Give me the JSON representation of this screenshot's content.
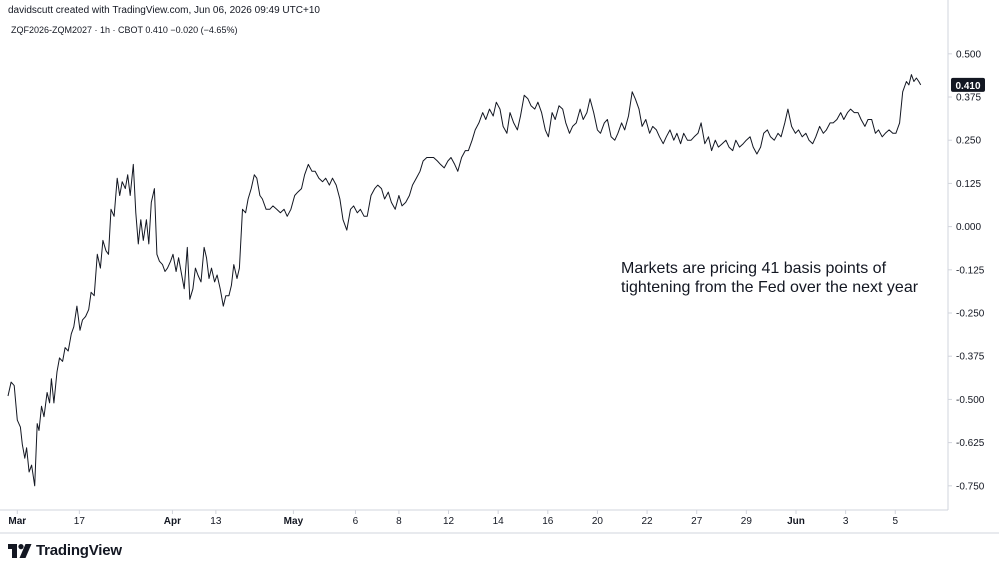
{
  "header": {
    "credit": "davidscutt created with TradingView.com, Jun 06, 2026 09:49 UTC+10",
    "symbol_line": "ZQF2026-ZQM2027 · 1h · CBOT  0.410  −0.020 (−4.65%)"
  },
  "footer": {
    "brand": "TradingView"
  },
  "chart_data": {
    "type": "line",
    "annotation": "Markets are pricing 41 basis points of\ntightening from the Fed over the next year",
    "last_value_label": "0.410",
    "ylim": [
      -0.82,
      0.54
    ],
    "yticks": [
      {
        "value": 0.5,
        "label": "0.500"
      },
      {
        "value": 0.375,
        "label": "0.375"
      },
      {
        "value": 0.25,
        "label": "0.250"
      },
      {
        "value": 0.125,
        "label": "0.125"
      },
      {
        "value": 0.0,
        "label": "0.000"
      },
      {
        "value": -0.125,
        "label": "-0.125"
      },
      {
        "value": -0.25,
        "label": "-0.250"
      },
      {
        "value": -0.375,
        "label": "-0.375"
      },
      {
        "value": -0.5,
        "label": "-0.500"
      },
      {
        "value": -0.625,
        "label": "-0.625"
      },
      {
        "value": -0.75,
        "label": "-0.750"
      }
    ],
    "xticks": [
      {
        "x": 0.5,
        "label": "Mar",
        "bold": true
      },
      {
        "x": 10.5,
        "label": "17",
        "bold": false
      },
      {
        "x": 25.5,
        "label": "Apr",
        "bold": true
      },
      {
        "x": 32.5,
        "label": "13",
        "bold": false
      },
      {
        "x": 45,
        "label": "May",
        "bold": true
      },
      {
        "x": 55,
        "label": "6",
        "bold": false
      },
      {
        "x": 62,
        "label": "8",
        "bold": false
      },
      {
        "x": 70,
        "label": "12",
        "bold": false
      },
      {
        "x": 78,
        "label": "14",
        "bold": false
      },
      {
        "x": 86,
        "label": "16",
        "bold": false
      },
      {
        "x": 94,
        "label": "20",
        "bold": false
      },
      {
        "x": 102,
        "label": "22",
        "bold": false
      },
      {
        "x": 110,
        "label": "27",
        "bold": false
      },
      {
        "x": 118,
        "label": "29",
        "bold": false
      },
      {
        "x": 126,
        "label": "Jun",
        "bold": true
      },
      {
        "x": 134,
        "label": "3",
        "bold": false
      },
      {
        "x": 142,
        "label": "5",
        "bold": false
      }
    ],
    "xlim": [
      -1,
      150.5
    ],
    "x": [
      -1,
      -0.5,
      0,
      0.5,
      1,
      1.3,
      1.7,
      2,
      2.4,
      2.8,
      3.3,
      3.7,
      4,
      4.4,
      4.8,
      5.3,
      5.7,
      6,
      6.4,
      6.9,
      7.3,
      7.8,
      8.2,
      8.7,
      9.2,
      9.6,
      10.1,
      10.6,
      11,
      11.5,
      12,
      12.4,
      12.9,
      13.4,
      13.9,
      14.3,
      14.8,
      15.2,
      15.6,
      16.1,
      16.6,
      17,
      17.4,
      17.9,
      18.3,
      18.7,
      19.2,
      19.6,
      20,
      20.4,
      20.8,
      21.3,
      21.7,
      22.1,
      22.6,
      23,
      23.4,
      23.9,
      24.3,
      24.7,
      25.2,
      25.6,
      26.1,
      26.5,
      27,
      27.4,
      27.9,
      28.3,
      28.8,
      29.2,
      29.6,
      30.1,
      30.6,
      31,
      31.4,
      31.8,
      32.3,
      32.7,
      33.2,
      33.7,
      34.1,
      34.6,
      35,
      35.4,
      35.9,
      36.3,
      36.8,
      37.3,
      37.7,
      38.2,
      38.7,
      39.1,
      39.6,
      40,
      40.6,
      41.2,
      41.7,
      42.3,
      42.9,
      43.5,
      44,
      44.6,
      45.2,
      45.7,
      46.3,
      46.8,
      47.4,
      48,
      48.5,
      49.1,
      49.7,
      50.2,
      50.8,
      51.3,
      51.9,
      52.5,
      53,
      53.6,
      54.2,
      54.7,
      55.3,
      55.8,
      56.4,
      56.9,
      57.5,
      58.1,
      58.6,
      59.2,
      59.7,
      60.3,
      60.8,
      61.4,
      62,
      62.5,
      63.1,
      63.7,
      64.2,
      64.8,
      65.4,
      65.9,
      66.5,
      67,
      67.6,
      68.2,
      68.7,
      69.3,
      69.9,
      70.4,
      71,
      71.5,
      72.1,
      72.7,
      73.2,
      73.8,
      74.3,
      74.9,
      75.5,
      76,
      76.6,
      77.2,
      77.7,
      78.3,
      78.8,
      79.4,
      79.9,
      80.5,
      81.1,
      81.6,
      82.2,
      82.8,
      83.3,
      83.9,
      84.4,
      85,
      85.6,
      86.1,
      86.7,
      87.2,
      87.8,
      88.4,
      88.9,
      89.5,
      90,
      90.6,
      91.2,
      91.7,
      92.3,
      92.8,
      93.4,
      94,
      94.5,
      95.1,
      95.6,
      96.2,
      96.8,
      97.3,
      97.9,
      98.4,
      99,
      99.6,
      100.1,
      100.7,
      101.2,
      101.8,
      102.4,
      102.9,
      103.5,
      104,
      104.6,
      105.1,
      105.7,
      106.3,
      106.8,
      107.4,
      107.9,
      108.5,
      109.1,
      109.6,
      110.2,
      110.7,
      111.3,
      111.9,
      112.4,
      113,
      113.5,
      114.1,
      114.7,
      115.2,
      115.8,
      116.3,
      116.9,
      117.5,
      118,
      118.6,
      119.1,
      119.7,
      120.3,
      120.8,
      121.4,
      121.9,
      122.5,
      123.1,
      123.6,
      124.2,
      124.7,
      125.3,
      125.9,
      126.4,
      127,
      127.6,
      128.1,
      128.7,
      129.2,
      129.8,
      130.4,
      130.9,
      131.5,
      132,
      132.6,
      133.2,
      133.7,
      134.3,
      134.8,
      135.4,
      136,
      136.5,
      137.1,
      137.6,
      138.2,
      138.8,
      139.3,
      139.9,
      140.4,
      141,
      141.6,
      142.1,
      142.7,
      143.2,
      143.8,
      144.2,
      144.6,
      145,
      145.4,
      145.8,
      146.1
    ],
    "y": [
      -0.49,
      -0.45,
      -0.46,
      -0.56,
      -0.58,
      -0.63,
      -0.67,
      -0.64,
      -0.71,
      -0.69,
      -0.75,
      -0.57,
      -0.59,
      -0.52,
      -0.55,
      -0.48,
      -0.51,
      -0.44,
      -0.51,
      -0.42,
      -0.38,
      -0.39,
      -0.35,
      -0.36,
      -0.31,
      -0.29,
      -0.23,
      -0.3,
      -0.27,
      -0.26,
      -0.24,
      -0.19,
      -0.2,
      -0.08,
      -0.12,
      -0.04,
      -0.07,
      -0.08,
      0.05,
      0.03,
      0.14,
      0.09,
      0.13,
      0.11,
      0.15,
      0.09,
      0.18,
      0.04,
      -0.05,
      0.02,
      -0.04,
      0.02,
      -0.05,
      0.07,
      0.11,
      -0.08,
      -0.1,
      -0.11,
      -0.13,
      -0.12,
      -0.1,
      -0.08,
      -0.13,
      -0.09,
      -0.14,
      -0.18,
      -0.06,
      -0.21,
      -0.18,
      -0.12,
      -0.14,
      -0.16,
      -0.06,
      -0.09,
      -0.15,
      -0.12,
      -0.16,
      -0.14,
      -0.18,
      -0.23,
      -0.2,
      -0.2,
      -0.17,
      -0.11,
      -0.15,
      -0.12,
      0.05,
      0.04,
      0.08,
      0.11,
      0.15,
      0.14,
      0.09,
      0.08,
      0.05,
      0.05,
      0.06,
      0.05,
      0.04,
      0.05,
      0.03,
      0.05,
      0.09,
      0.1,
      0.11,
      0.15,
      0.18,
      0.16,
      0.16,
      0.14,
      0.13,
      0.14,
      0.12,
      0.14,
      0.12,
      0.08,
      0.02,
      -0.01,
      0.05,
      0.06,
      0.04,
      0.05,
      0.03,
      0.03,
      0.09,
      0.11,
      0.12,
      0.11,
      0.08,
      0.1,
      0.07,
      0.05,
      0.09,
      0.06,
      0.07,
      0.09,
      0.12,
      0.14,
      0.16,
      0.19,
      0.2,
      0.2,
      0.2,
      0.19,
      0.18,
      0.17,
      0.19,
      0.2,
      0.18,
      0.16,
      0.2,
      0.22,
      0.22,
      0.25,
      0.28,
      0.3,
      0.33,
      0.31,
      0.34,
      0.32,
      0.36,
      0.34,
      0.29,
      0.27,
      0.33,
      0.3,
      0.28,
      0.32,
      0.38,
      0.37,
      0.35,
      0.34,
      0.36,
      0.33,
      0.28,
      0.26,
      0.33,
      0.31,
      0.35,
      0.34,
      0.3,
      0.27,
      0.29,
      0.3,
      0.34,
      0.31,
      0.33,
      0.37,
      0.33,
      0.28,
      0.27,
      0.3,
      0.31,
      0.26,
      0.25,
      0.27,
      0.3,
      0.28,
      0.32,
      0.39,
      0.37,
      0.34,
      0.29,
      0.31,
      0.27,
      0.29,
      0.28,
      0.26,
      0.24,
      0.26,
      0.28,
      0.25,
      0.27,
      0.24,
      0.27,
      0.25,
      0.25,
      0.26,
      0.27,
      0.3,
      0.24,
      0.26,
      0.22,
      0.25,
      0.23,
      0.24,
      0.25,
      0.23,
      0.22,
      0.25,
      0.23,
      0.24,
      0.25,
      0.26,
      0.23,
      0.21,
      0.23,
      0.27,
      0.28,
      0.26,
      0.25,
      0.27,
      0.26,
      0.3,
      0.34,
      0.29,
      0.27,
      0.28,
      0.26,
      0.27,
      0.25,
      0.24,
      0.26,
      0.29,
      0.27,
      0.28,
      0.3,
      0.3,
      0.31,
      0.33,
      0.31,
      0.33,
      0.34,
      0.33,
      0.33,
      0.31,
      0.29,
      0.31,
      0.31,
      0.27,
      0.28,
      0.26,
      0.27,
      0.28,
      0.27,
      0.27,
      0.3,
      0.39,
      0.42,
      0.41,
      0.44,
      0.42,
      0.43,
      0.42,
      0.41
    ]
  },
  "colors": {
    "line": "#131722",
    "axis_text": "#131722",
    "axis_border": "#d1d4dc",
    "price_badge_bg": "#131722",
    "price_badge_text": "#ffffff"
  }
}
